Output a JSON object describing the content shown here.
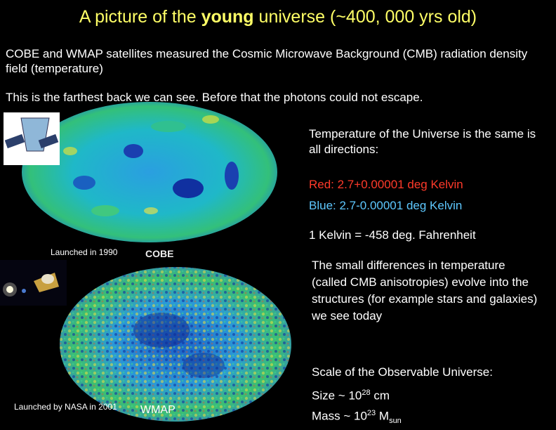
{
  "title": {
    "before": "A picture of the",
    "emphasis": "young",
    "after": "universe (~400, 000 yrs old)"
  },
  "intro": [
    "COBE and WMAP satellites measured the Cosmic Microwave Background (CMB) radiation density field (temperature)",
    "This is the farthest back we can see.  Before that the photons could not escape."
  ],
  "notes": {
    "same": "Temperature of the Universe is the same is all directions:",
    "red": "Red:  2.7+0.00001 deg Kelvin",
    "blue": "Blue:  2.7-0.00001 deg Kelvin",
    "kelvin": "1 Kelvin = -458 deg. Fahrenheit",
    "differences": "The small differences in temperature (called CMB anisotropies) evolve into the structures (for example stars and galaxies) we see today"
  },
  "scale": {
    "heading": "Scale of the Observable Universe:",
    "size": {
      "text": "Size ~ 10",
      "exponent": "28",
      "unit": "cm"
    },
    "mass": {
      "text": "Mass ~ 10",
      "exponent": "23",
      "symbol": "M",
      "subscript": "sun"
    }
  },
  "captions": {
    "cobe_launch": "Launched in 1990",
    "cobe": "COBE",
    "wmap_launch": "Launched by NASA in 2001",
    "wmap": "WMAP"
  }
}
